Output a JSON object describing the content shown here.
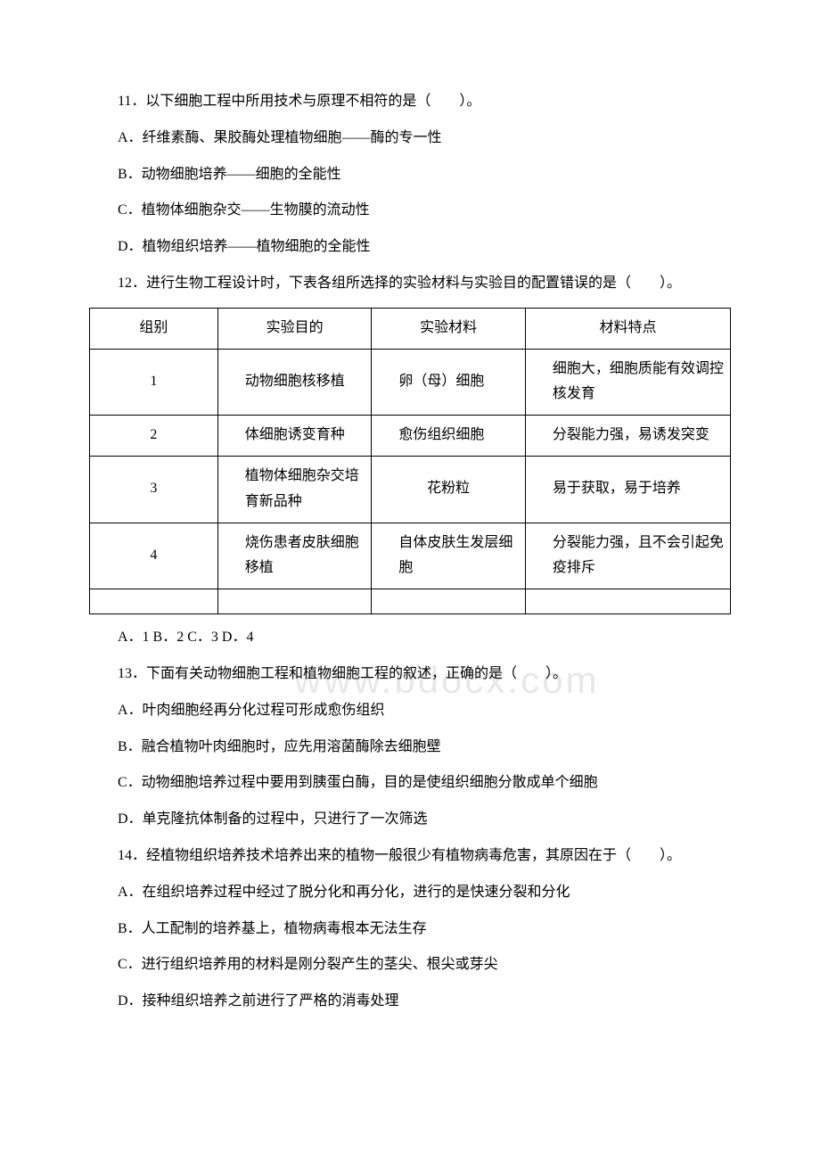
{
  "watermark": "www.bdocx.com",
  "q11": {
    "stem": "11．以下细胞工程中所用技术与原理不相符的是（　　）。",
    "optA": "A．纤维素酶、果胶酶处理植物细胞——酶的专一性",
    "optB": "B．动物细胞培养——细胞的全能性",
    "optC": "C．植物体细胞杂交——生物膜的流动性",
    "optD": "D．植物组织培养——植物细胞的全能性"
  },
  "q12": {
    "stem": "12．进行生物工程设计时，下表各组所选择的实验材料与实验目的配置错误的是（　　）。",
    "table": {
      "headers": {
        "h1": "组别",
        "h2": "实验目的",
        "h3": "实验材料",
        "h4": "材料特点"
      },
      "rows": [
        {
          "c1": "1",
          "c2": "动物细胞核移植",
          "c3": "卵（母）细胞",
          "c4": "细胞大，细胞质能有效调控核发育"
        },
        {
          "c1": "2",
          "c2": "体细胞诱变育种",
          "c3": "愈伤组织细胞",
          "c4": "分裂能力强，易诱发突变"
        },
        {
          "c1": "3",
          "c2": "植物体细胞杂交培育新品种",
          "c3": "花粉粒",
          "c4": "易于获取，易于培养"
        },
        {
          "c1": "4",
          "c2": "烧伤患者皮肤细胞移植",
          "c3": "自体皮肤生发层细胞",
          "c4": "分裂能力强，且不会引起免疫排斥"
        }
      ]
    },
    "options": "A．1 B．2 C．3 D．4"
  },
  "q13": {
    "stem": "13．下面有关动物细胞工程和植物细胞工程的叙述，正确的是（　　）。",
    "optA": "A．叶肉细胞经再分化过程可形成愈伤组织",
    "optB": "B．融合植物叶肉细胞时，应先用溶菌酶除去细胞壁",
    "optC": "C．动物细胞培养过程中要用到胰蛋白酶，目的是使组织细胞分散成单个细胞",
    "optD": "D．单克隆抗体制备的过程中，只进行了一次筛选"
  },
  "q14": {
    "stem": "14．经植物组织培养技术培养出来的植物一般很少有植物病毒危害，其原因在于（　　）。",
    "optA": "A．在组织培养过程中经过了脱分化和再分化，进行的是快速分裂和分化",
    "optB": "B．人工配制的培养基上，植物病毒根本无法生存",
    "optC": "C．进行组织培养用的材料是刚分裂产生的茎尖、根尖或芽尖",
    "optD": "D．接种组织培养之前进行了严格的消毒处理"
  }
}
